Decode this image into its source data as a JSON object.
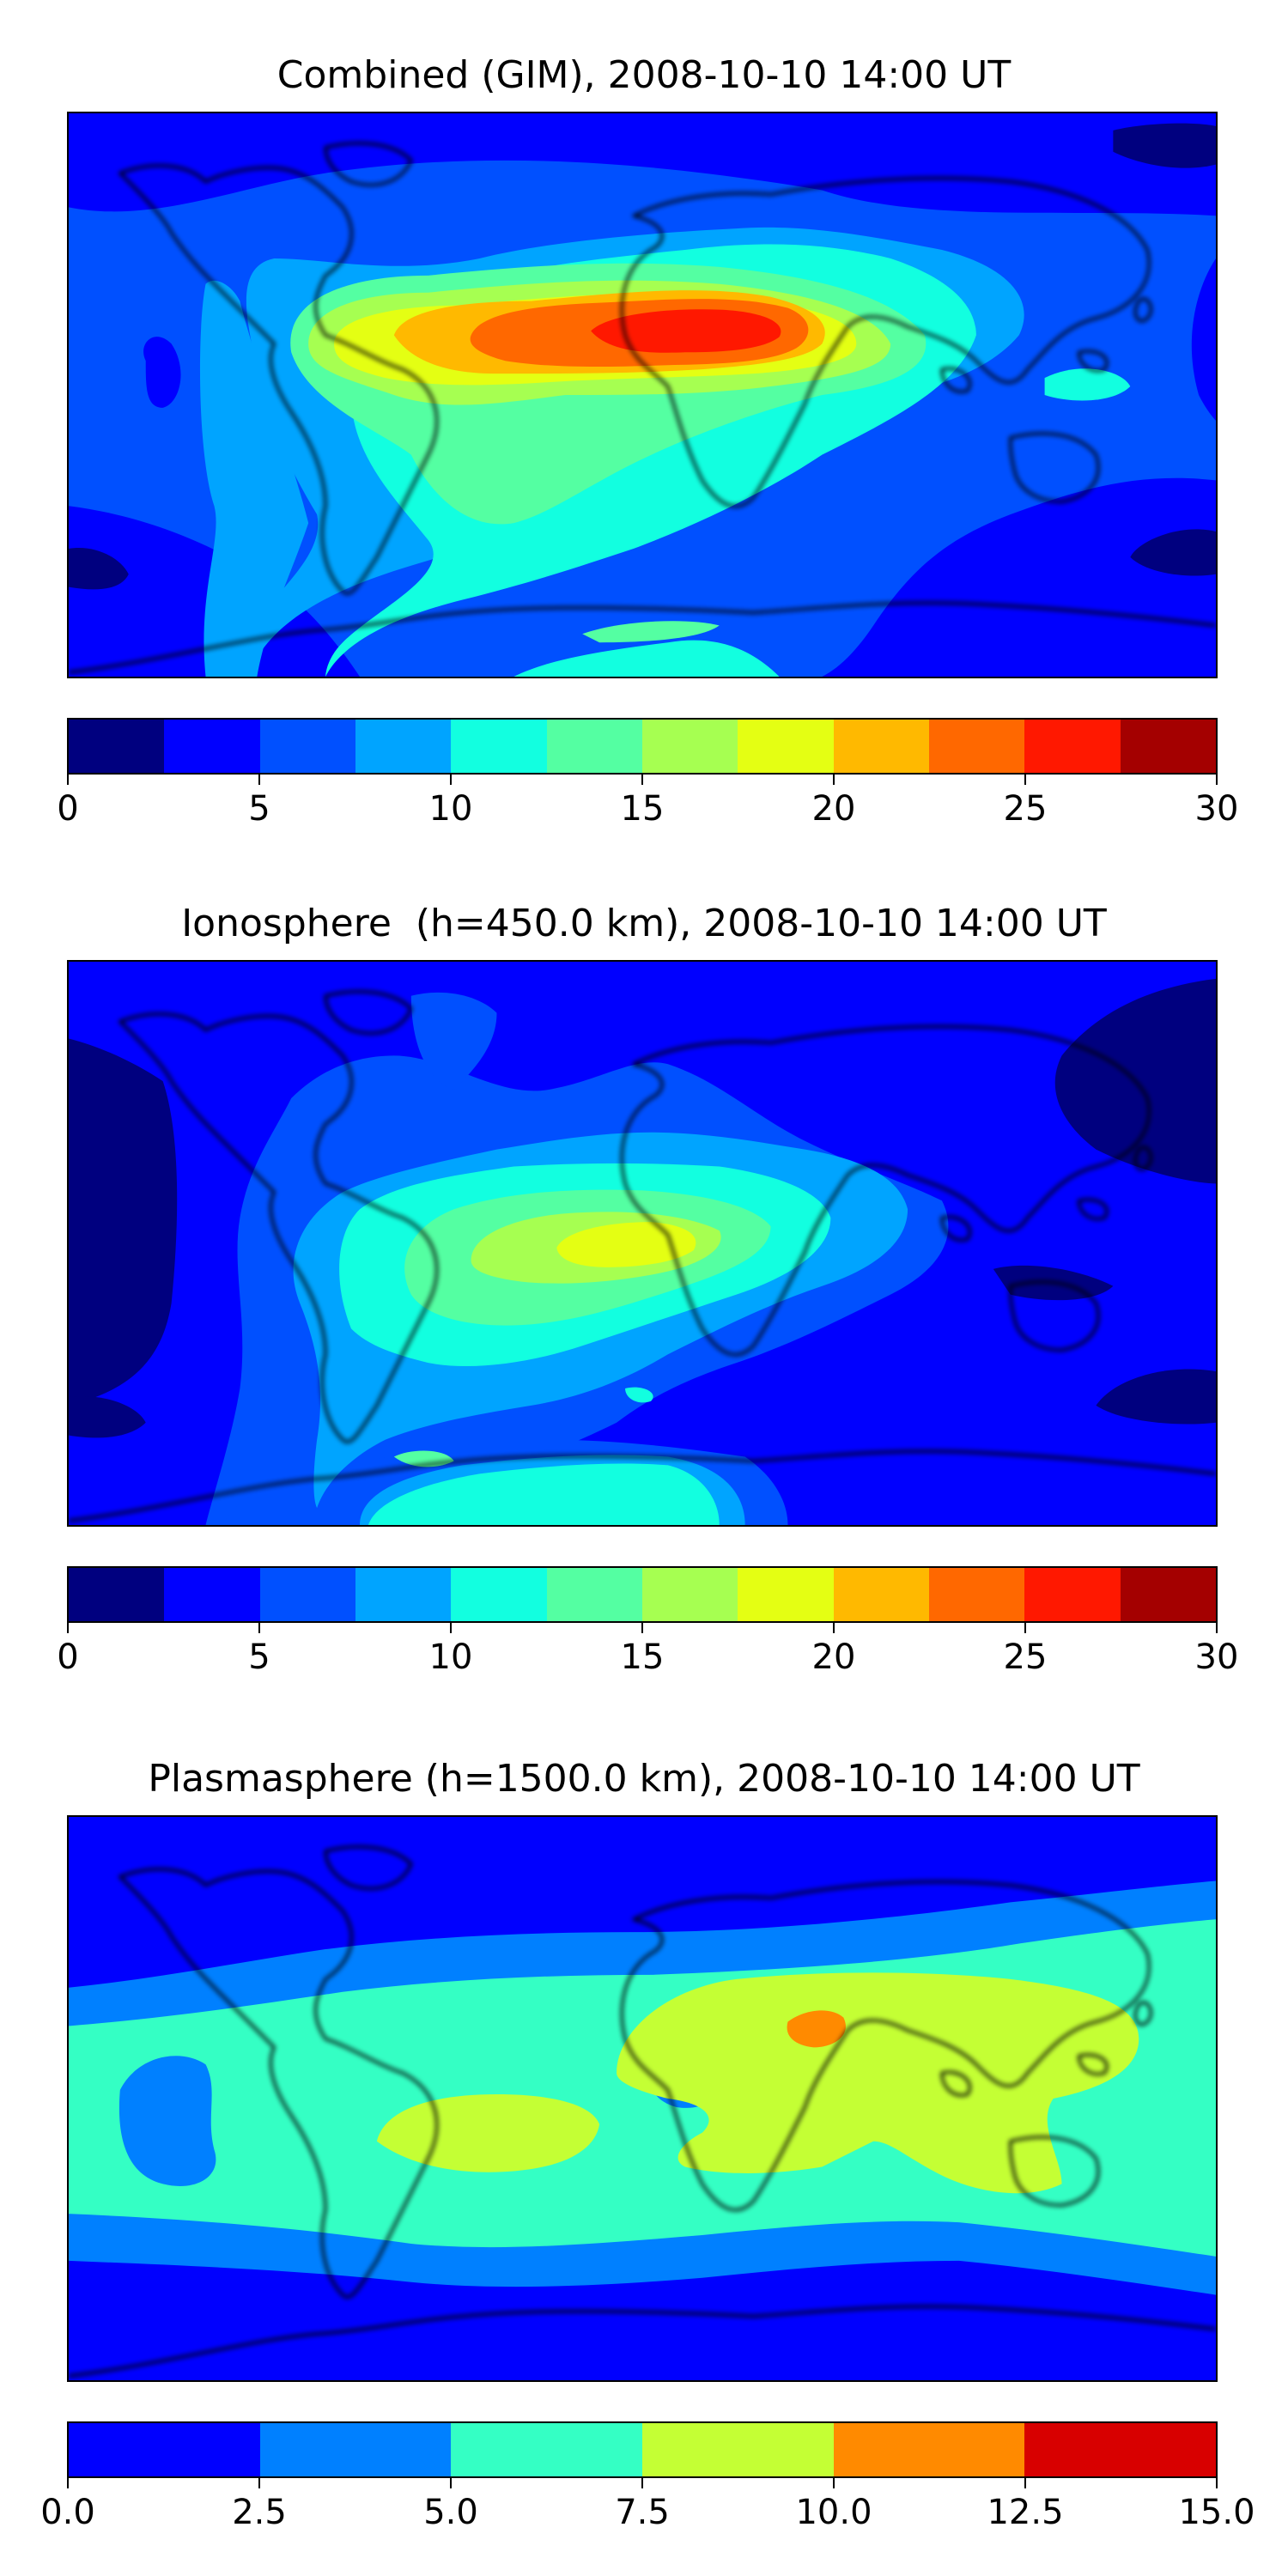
{
  "colormaps": {
    "jet12": [
      "#00007f",
      "#0000ff",
      "#0050ff",
      "#00a4ff",
      "#12ffe0",
      "#54ffa2",
      "#a6ff51",
      "#e4ff13",
      "#ffb900",
      "#ff6800",
      "#ff1800",
      "#a40000"
    ],
    "jet6": [
      "#0000ff",
      "#0080ff",
      "#34ffc4",
      "#c4ff34",
      "#ff8a00",
      "#d80000"
    ]
  },
  "panels": [
    {
      "id": "combined",
      "title": "Combined (GIM), 2008-10-10 14:00 UT",
      "colorbar": {
        "min": 0,
        "max": 30,
        "levels": 12,
        "colormap": "jet12",
        "ticks": [
          "0",
          "5",
          "10",
          "15",
          "20",
          "25",
          "30"
        ]
      }
    },
    {
      "id": "ionosphere",
      "title": "Ionosphere  (h=450.0 km), 2008-10-10 14:00 UT",
      "colorbar": {
        "min": 0,
        "max": 30,
        "levels": 12,
        "colormap": "jet12",
        "ticks": [
          "0",
          "5",
          "10",
          "15",
          "20",
          "25",
          "30"
        ]
      }
    },
    {
      "id": "plasmasphere",
      "title": "Plasmasphere (h=1500.0 km), 2008-10-10 14:00 UT",
      "colorbar": {
        "min": 0,
        "max": 15,
        "levels": 6,
        "colormap": "jet6",
        "ticks": [
          "0.0",
          "2.5",
          "5.0",
          "7.5",
          "10.0",
          "12.5",
          "15.0"
        ]
      }
    }
  ]
}
